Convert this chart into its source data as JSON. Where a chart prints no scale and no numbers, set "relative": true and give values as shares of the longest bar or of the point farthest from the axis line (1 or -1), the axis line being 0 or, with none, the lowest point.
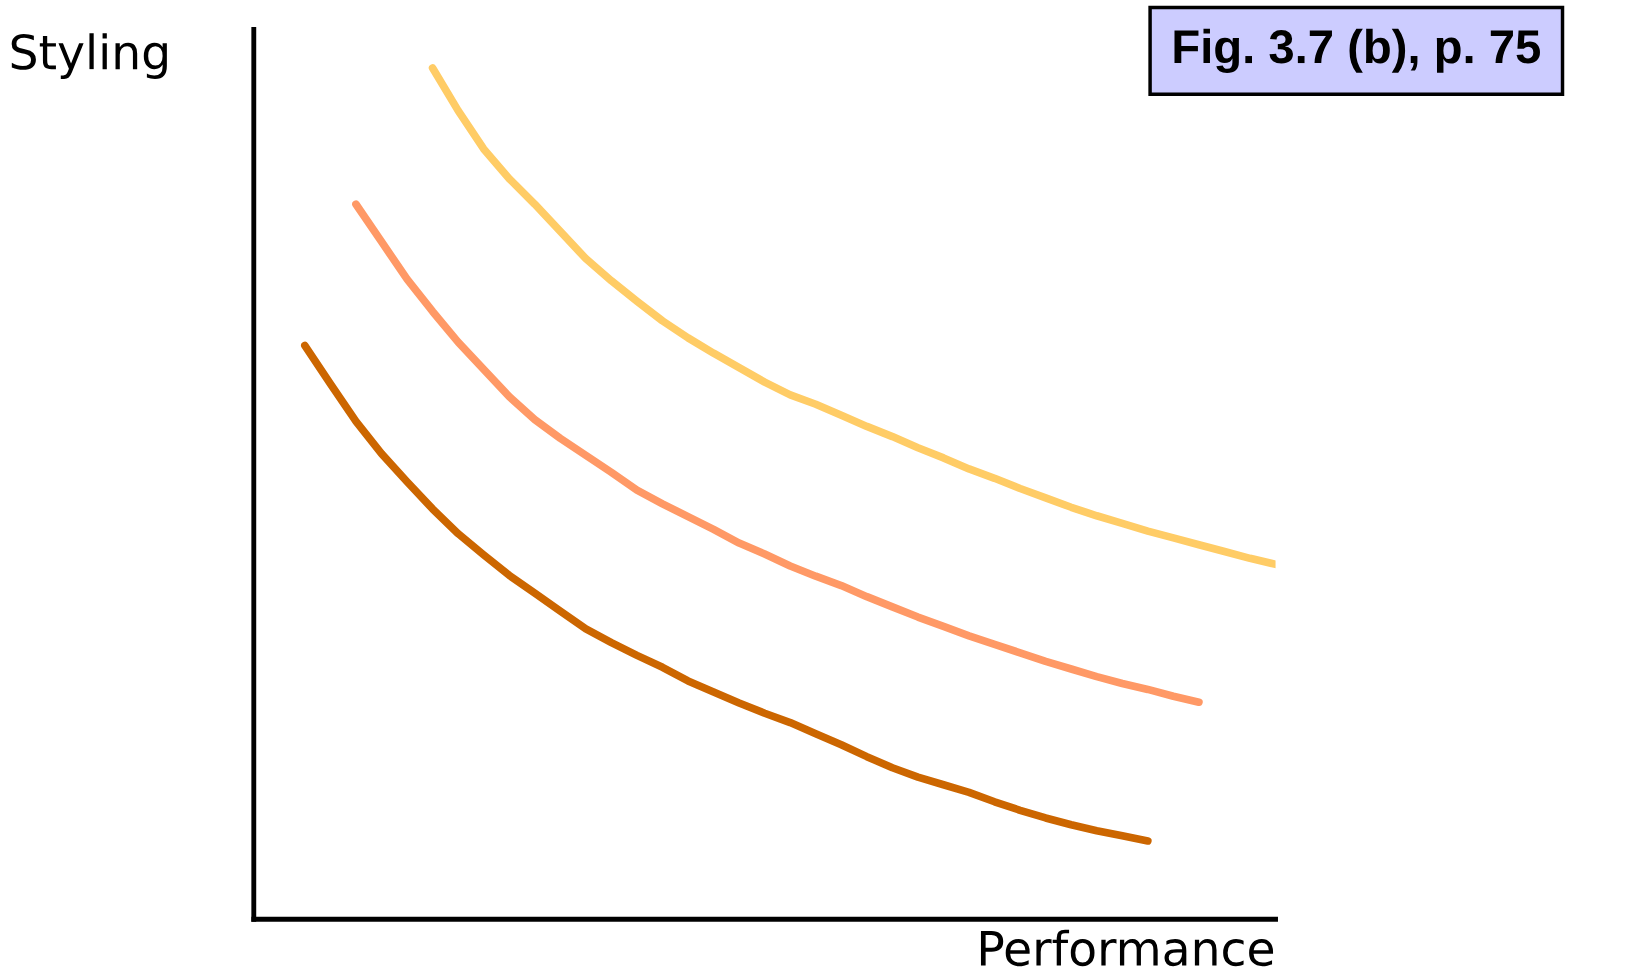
{
  "chart_data": {
    "type": "line",
    "relative": true,
    "xlabel": "Performance",
    "ylabel": "Styling",
    "annotations": [
      "Fig. 3.7 (b), p. 75"
    ],
    "marker": "none",
    "line_style": "solid",
    "categories": [
      null,
      null,
      null,
      null,
      null,
      null,
      null,
      null,
      null,
      null,
      null,
      null,
      null,
      null,
      null,
      null,
      null,
      null,
      null,
      null,
      null,
      null,
      null,
      null,
      null,
      null,
      null,
      null,
      null,
      null,
      null,
      null,
      null,
      null,
      null,
      null,
      null,
      null,
      null,
      null,
      null
    ],
    "series": [
      {
        "color": "#ffcc66",
        "values": [
          null,
          null,
          null,
          null,
          null,
          null,
          null,
          1.0,
          0.95,
          0.905,
          0.87,
          0.84,
          0.808,
          0.776,
          0.75,
          0.726,
          0.703,
          0.683,
          0.665,
          0.648,
          0.631,
          0.616,
          0.605,
          0.592,
          0.579,
          0.567,
          0.554,
          0.542,
          0.529,
          0.518,
          0.506,
          0.495,
          0.484,
          0.474,
          0.465,
          0.456,
          0.448,
          0.44,
          0.432,
          0.424,
          0.417
        ]
      },
      {
        "color": "#ff9966",
        "values": [
          null,
          null,
          null,
          null,
          0.84,
          0.796,
          0.752,
          0.714,
          0.678,
          0.646,
          0.614,
          0.587,
          0.565,
          0.545,
          0.525,
          0.504,
          0.488,
          0.473,
          0.458,
          0.442,
          0.429,
          0.415,
          0.403,
          0.392,
          0.379,
          0.367,
          0.355,
          0.344,
          0.333,
          0.323,
          0.313,
          0.303,
          0.294,
          0.285,
          0.277,
          0.27,
          0.262,
          0.255,
          null,
          null,
          null
        ]
      },
      {
        "color": "#cc6600",
        "values": [
          null,
          null,
          0.674,
          0.629,
          0.585,
          0.547,
          0.514,
          0.482,
          0.453,
          0.428,
          0.404,
          0.383,
          0.362,
          0.341,
          0.325,
          0.31,
          0.296,
          0.28,
          0.267,
          0.254,
          0.242,
          0.231,
          0.218,
          0.205,
          0.191,
          0.178,
          0.167,
          0.158,
          0.149,
          0.138,
          0.128,
          0.119,
          0.111,
          0.104,
          0.098,
          0.092,
          null,
          null,
          null,
          null,
          null
        ]
      }
    ]
  }
}
